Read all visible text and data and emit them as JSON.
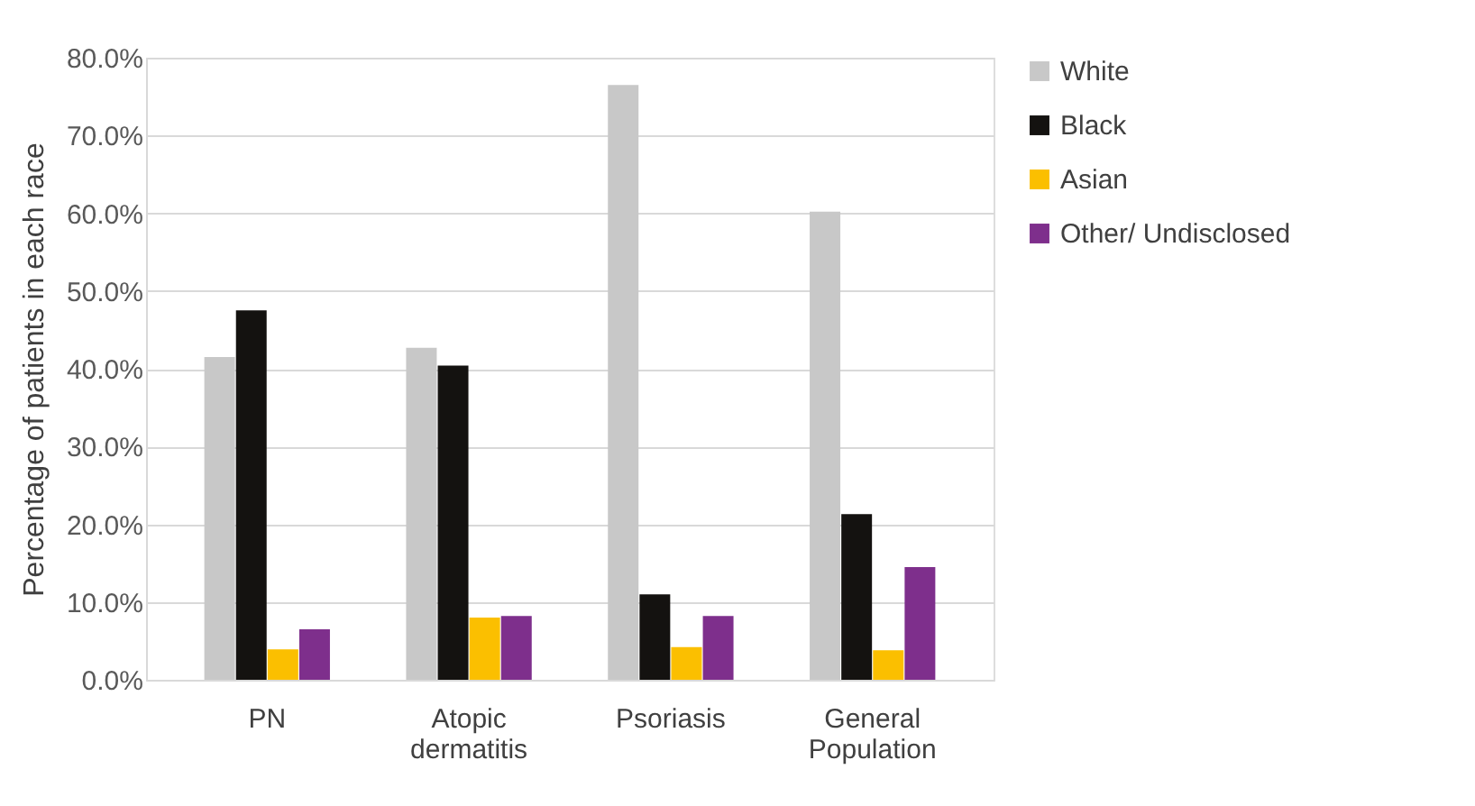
{
  "chart_data": {
    "type": "bar",
    "ylabel": "Percentage of patients in each race",
    "categories": [
      "PN",
      "Atopic dermatitis",
      "Psoriasis",
      "General Population"
    ],
    "series": [
      {
        "name": "White",
        "color": "#c8c8c8",
        "values": [
          41.5,
          42.7,
          76.5,
          60.2
        ]
      },
      {
        "name": "Black",
        "color": "#141210",
        "values": [
          47.5,
          40.4,
          11.0,
          21.3
        ]
      },
      {
        "name": "Asian",
        "color": "#fbbf00",
        "values": [
          3.9,
          8.0,
          4.2,
          3.8
        ]
      },
      {
        "name": "Other/ Undisclosed",
        "color": "#7e2f8c",
        "values": [
          6.5,
          8.2,
          8.2,
          14.5
        ]
      }
    ],
    "ylim": [
      0,
      80
    ],
    "yticks": [
      {
        "value": 0,
        "label": "0.0%"
      },
      {
        "value": 10,
        "label": "10.0%"
      },
      {
        "value": 20,
        "label": "20.0%"
      },
      {
        "value": 30,
        "label": "30.0%"
      },
      {
        "value": 40,
        "label": "40.0%"
      },
      {
        "value": 50,
        "label": "50.0%"
      },
      {
        "value": 60,
        "label": "60.0%"
      },
      {
        "value": 70,
        "label": "70.0%"
      },
      {
        "value": 80,
        "label": "80.0%"
      }
    ],
    "grid": "y",
    "legend": "right"
  }
}
